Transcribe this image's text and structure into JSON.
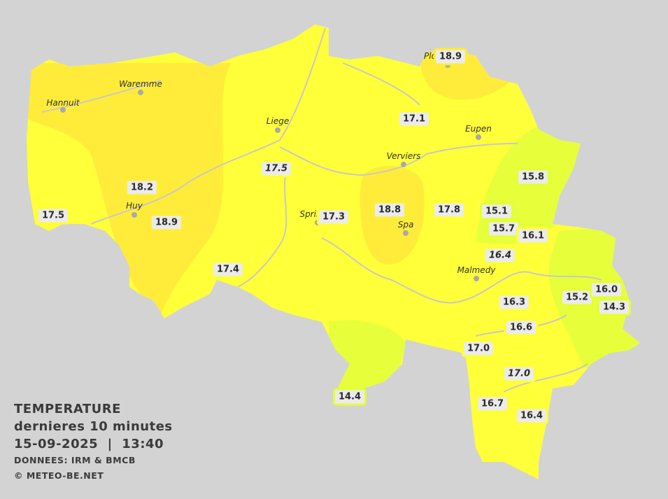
{
  "legend": {
    "title": "TEMPERATURE",
    "subtitle": "dernieres 10 minutes",
    "datetime": "15-09-2025  |  13:40",
    "source": "DONNEES: IRM & BMCB",
    "copyright": "© METEO-BE.NET"
  },
  "colors": {
    "background": "#d3d3d3",
    "yellow_zone": "#ffff3a",
    "orange_zone": "#ffec3a",
    "lime_zone": "#e6ff3a",
    "rivers": "#c8c8c8"
  },
  "cities": [
    "Hannuit",
    "Waremme",
    "Liege",
    "Verviers",
    "Eupen",
    "Huy",
    "Sprin",
    "Spa",
    "Malmedy",
    "Plo"
  ],
  "stations": [
    {
      "value": "18.9",
      "zone": "orange",
      "italic": false
    },
    {
      "value": "17.1",
      "zone": "yellow",
      "italic": false
    },
    {
      "value": "15.8",
      "zone": "lime",
      "italic": false
    },
    {
      "value": "17.5",
      "zone": "yellow",
      "italic": true
    },
    {
      "value": "18.2",
      "zone": "orange",
      "italic": false
    },
    {
      "value": "17.5",
      "zone": "yellow",
      "italic": false
    },
    {
      "value": "18.9",
      "zone": "orange",
      "italic": false
    },
    {
      "value": "17.3",
      "zone": "yellow",
      "italic": false
    },
    {
      "value": "18.8",
      "zone": "orange",
      "italic": false
    },
    {
      "value": "17.8",
      "zone": "yellow",
      "italic": false
    },
    {
      "value": "15.1",
      "zone": "lime",
      "italic": false
    },
    {
      "value": "15.7",
      "zone": "lime",
      "italic": false
    },
    {
      "value": "16.1",
      "zone": "yellow",
      "italic": false
    },
    {
      "value": "16.4",
      "zone": "yellow",
      "italic": true
    },
    {
      "value": "17.4",
      "zone": "yellow",
      "italic": false
    },
    {
      "value": "16.3",
      "zone": "yellow",
      "italic": false
    },
    {
      "value": "15.2",
      "zone": "lime",
      "italic": false
    },
    {
      "value": "16.0",
      "zone": "lime",
      "italic": false
    },
    {
      "value": "14.3",
      "zone": "lime",
      "italic": false
    },
    {
      "value": "16.6",
      "zone": "yellow",
      "italic": false
    },
    {
      "value": "17.0",
      "zone": "yellow",
      "italic": false
    },
    {
      "value": "17.0",
      "zone": "yellow",
      "italic": true
    },
    {
      "value": "14.4",
      "zone": "lime",
      "italic": false
    },
    {
      "value": "16.7",
      "zone": "yellow",
      "italic": false
    },
    {
      "value": "16.4",
      "zone": "yellow",
      "italic": false
    }
  ]
}
